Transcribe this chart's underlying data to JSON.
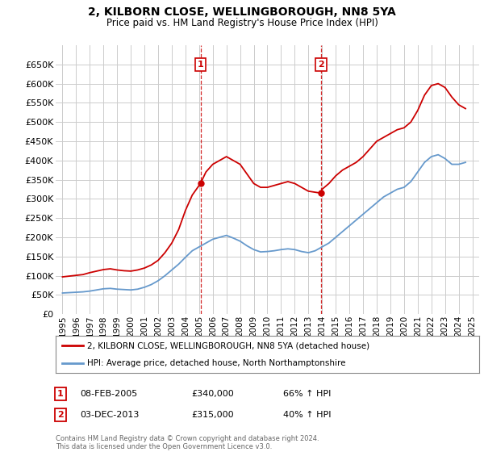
{
  "title": "2, KILBORN CLOSE, WELLINGBOROUGH, NN8 5YA",
  "subtitle": "Price paid vs. HM Land Registry's House Price Index (HPI)",
  "legend_label_red": "2, KILBORN CLOSE, WELLINGBOROUGH, NN8 5YA (detached house)",
  "legend_label_blue": "HPI: Average price, detached house, North Northamptonshire",
  "footnote": "Contains HM Land Registry data © Crown copyright and database right 2024.\nThis data is licensed under the Open Government Licence v3.0.",
  "point1_label": "1",
  "point1_date": "08-FEB-2005",
  "point1_price": "£340,000",
  "point1_hpi": "66% ↑ HPI",
  "point1_x": 2005.1,
  "point1_y": 340000,
  "point2_label": "2",
  "point2_date": "03-DEC-2013",
  "point2_price": "£315,000",
  "point2_hpi": "40% ↑ HPI",
  "point2_x": 2013.92,
  "point2_y": 315000,
  "ylim_min": 0,
  "ylim_max": 700000,
  "yticks": [
    0,
    50000,
    100000,
    150000,
    200000,
    250000,
    300000,
    350000,
    400000,
    450000,
    500000,
    550000,
    600000,
    650000
  ],
  "xlim_min": 1994.5,
  "xlim_max": 2025.5,
  "xticks": [
    1995,
    1996,
    1997,
    1998,
    1999,
    2000,
    2001,
    2002,
    2003,
    2004,
    2005,
    2006,
    2007,
    2008,
    2009,
    2010,
    2011,
    2012,
    2013,
    2014,
    2015,
    2016,
    2017,
    2018,
    2019,
    2020,
    2021,
    2022,
    2023,
    2024,
    2025
  ],
  "red_line_color": "#cc0000",
  "blue_line_color": "#6699cc",
  "grid_color": "#cccccc",
  "background_color": "#ffffff",
  "red_x": [
    1995.0,
    1995.5,
    1996.0,
    1996.5,
    1997.0,
    1997.5,
    1998.0,
    1998.5,
    1999.0,
    1999.5,
    2000.0,
    2000.5,
    2001.0,
    2001.5,
    2002.0,
    2002.5,
    2003.0,
    2003.5,
    2004.0,
    2004.5,
    2005.1,
    2005.5,
    2006.0,
    2006.5,
    2007.0,
    2007.5,
    2008.0,
    2008.5,
    2009.0,
    2009.5,
    2010.0,
    2010.5,
    2011.0,
    2011.5,
    2012.0,
    2012.5,
    2013.0,
    2013.92,
    2014.0,
    2014.5,
    2015.0,
    2015.5,
    2016.0,
    2016.5,
    2017.0,
    2017.5,
    2018.0,
    2018.5,
    2019.0,
    2019.5,
    2020.0,
    2020.5,
    2021.0,
    2021.5,
    2022.0,
    2022.5,
    2023.0,
    2023.5,
    2024.0,
    2024.5
  ],
  "red_y": [
    97000,
    99000,
    101000,
    103000,
    108000,
    112000,
    116000,
    118000,
    115000,
    113000,
    112000,
    115000,
    120000,
    128000,
    140000,
    160000,
    185000,
    220000,
    270000,
    310000,
    340000,
    370000,
    390000,
    400000,
    410000,
    400000,
    390000,
    365000,
    340000,
    330000,
    330000,
    335000,
    340000,
    345000,
    340000,
    330000,
    320000,
    315000,
    325000,
    340000,
    360000,
    375000,
    385000,
    395000,
    410000,
    430000,
    450000,
    460000,
    470000,
    480000,
    485000,
    500000,
    530000,
    570000,
    595000,
    600000,
    590000,
    565000,
    545000,
    535000
  ],
  "blue_x": [
    1995.0,
    1995.5,
    1996.0,
    1996.5,
    1997.0,
    1997.5,
    1998.0,
    1998.5,
    1999.0,
    1999.5,
    2000.0,
    2000.5,
    2001.0,
    2001.5,
    2002.0,
    2002.5,
    2003.0,
    2003.5,
    2004.0,
    2004.5,
    2005.0,
    2005.5,
    2006.0,
    2006.5,
    2007.0,
    2007.5,
    2008.0,
    2008.5,
    2009.0,
    2009.5,
    2010.0,
    2010.5,
    2011.0,
    2011.5,
    2012.0,
    2012.5,
    2013.0,
    2013.5,
    2014.0,
    2014.5,
    2015.0,
    2015.5,
    2016.0,
    2016.5,
    2017.0,
    2017.5,
    2018.0,
    2018.5,
    2019.0,
    2019.5,
    2020.0,
    2020.5,
    2021.0,
    2021.5,
    2022.0,
    2022.5,
    2023.0,
    2023.5,
    2024.0,
    2024.5
  ],
  "blue_y": [
    55000,
    56000,
    57000,
    58000,
    60000,
    63000,
    66000,
    67000,
    65000,
    64000,
    63000,
    65000,
    70000,
    77000,
    87000,
    100000,
    115000,
    130000,
    148000,
    165000,
    175000,
    185000,
    195000,
    200000,
    205000,
    198000,
    190000,
    178000,
    168000,
    162000,
    163000,
    165000,
    168000,
    170000,
    168000,
    163000,
    160000,
    165000,
    175000,
    185000,
    200000,
    215000,
    230000,
    245000,
    260000,
    275000,
    290000,
    305000,
    315000,
    325000,
    330000,
    345000,
    370000,
    395000,
    410000,
    415000,
    405000,
    390000,
    390000,
    395000
  ]
}
